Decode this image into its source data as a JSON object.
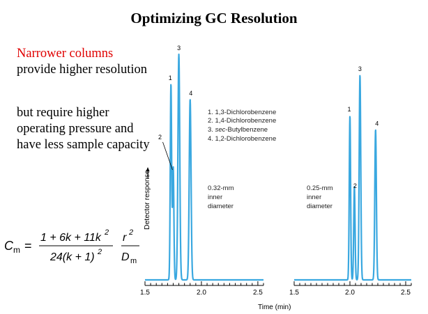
{
  "slide": {
    "title": "Optimizing GC Resolution",
    "highlight": "Narrower columns",
    "text1_rest": "provide higher resolution",
    "text2": "but require higher operating pressure and have less sample capacity"
  },
  "formula": {
    "lhs_main": "C",
    "lhs_sub": "m",
    "equals": "=",
    "numerator": "1 + 6k + 11k",
    "numerator_exp": "2",
    "denominator": "24(k + 1)",
    "denominator_exp": "2",
    "rvar": "r",
    "rvar_exp": "2",
    "dvar": "D",
    "dvar_sub": "m"
  },
  "chart_data": {
    "type": "line",
    "ylabel": "Detector response",
    "xlabel": "Time (min)",
    "legend": [
      "1. 1,3-Dichlorobenzene",
      "2. 1,4-Dichlorobenzene",
      "3. sec-Butylbenzene",
      "4. 1,2-Dichlorobenzene"
    ],
    "colors": {
      "trace": "#3aa8e0",
      "axis": "#000000"
    },
    "panels": [
      {
        "label": "0.32-mm inner diameter",
        "label_lines": [
          "0.32-mm",
          "inner",
          "diameter"
        ],
        "xlim": [
          1.5,
          2.55
        ],
        "ticks": [
          "1.5",
          "2.0",
          "2.5"
        ],
        "tick_values": [
          1.5,
          2.0,
          2.5
        ],
        "ylim": [
          0,
          1.0
        ],
        "baseline": 0.1,
        "peaks": [
          {
            "id": "1",
            "x": 1.73,
            "height": 0.88,
            "width": 0.006
          },
          {
            "id": "2",
            "x": 1.75,
            "height": 0.55,
            "width": 0.006
          },
          {
            "id": "3",
            "x": 1.8,
            "height": 1.0,
            "width": 0.008
          },
          {
            "id": "4",
            "x": 1.9,
            "height": 0.82,
            "width": 0.008
          }
        ]
      },
      {
        "label": "0.25-mm inner diameter",
        "label_lines": [
          "0.25-mm",
          "inner",
          "diameter"
        ],
        "xlim": [
          1.5,
          2.55
        ],
        "ticks": [
          "1.5",
          "2.0",
          "2.5"
        ],
        "tick_values": [
          1.5,
          2.0,
          2.5
        ],
        "ylim": [
          0,
          1.0
        ],
        "baseline": 0.1,
        "peaks": [
          {
            "id": "1",
            "x": 2.0,
            "height": 0.82,
            "width": 0.006
          },
          {
            "id": "2",
            "x": 2.04,
            "height": 0.51,
            "width": 0.006
          },
          {
            "id": "3",
            "x": 2.09,
            "height": 1.0,
            "width": 0.007
          },
          {
            "id": "4",
            "x": 2.23,
            "height": 0.76,
            "width": 0.007
          }
        ]
      }
    ]
  }
}
